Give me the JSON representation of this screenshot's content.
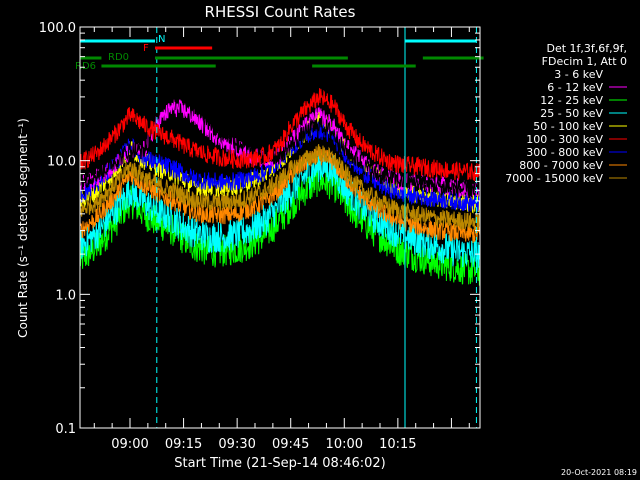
{
  "chart_data": {
    "type": "line",
    "title": "RHESSI Count Rates",
    "xlabel": "Start Time (21-Sep-14 08:46:02)",
    "ylabel": "Count Rate (s⁻¹ detector segment⁻¹)",
    "yscale": "log",
    "ylim": [
      0.1,
      100.0
    ],
    "xlim_minutes": [
      0,
      112
    ],
    "x_tick_labels": [
      "09:00",
      "09:15",
      "09:30",
      "09:45",
      "10:00",
      "10:15"
    ],
    "x_tick_minutes": [
      14,
      29,
      44,
      59,
      74,
      89
    ],
    "y_tick_labels": [
      "0.1",
      "1.0",
      "10.0",
      "100.0"
    ],
    "y_tick_values": [
      0.1,
      1.0,
      10.0,
      100.0
    ],
    "legend_header": [
      "Det 1f,3f,6f,9f,",
      "FDecim 1, Att 0"
    ],
    "legend_placement": "right",
    "grid": false,
    "series": [
      {
        "name": "3 - 6 keV",
        "color": "#000000",
        "x": [
          0,
          5,
          10,
          14,
          18,
          22,
          26,
          29,
          32,
          36,
          40,
          44,
          48,
          52,
          56,
          59,
          63,
          67,
          71,
          74,
          78,
          82,
          86,
          90,
          95,
          100,
          105,
          110
        ],
        "y": [
          7.0,
          8.0,
          10.0,
          12.0,
          12.0,
          25.0,
          32.0,
          30.0,
          26.0,
          20.0,
          16.0,
          14.0,
          12.0,
          10.5,
          11.0,
          13.0,
          16.0,
          19.0,
          16.0,
          12.0,
          10.0,
          8.0,
          7.5,
          7.0,
          6.8,
          6.5,
          6.2,
          6.0
        ]
      },
      {
        "name": "6 - 12 keV",
        "color": "#ff00ff",
        "x": [
          0,
          5,
          10,
          14,
          18,
          22,
          26,
          29,
          32,
          36,
          40,
          44,
          48,
          52,
          56,
          59,
          63,
          67,
          71,
          74,
          78,
          82,
          86,
          90,
          95,
          100,
          105,
          110
        ],
        "y": [
          6.5,
          7.5,
          9.5,
          11.5,
          12.0,
          20.0,
          25.0,
          24.0,
          21.0,
          17.0,
          14.0,
          12.5,
          11.0,
          10.0,
          11.0,
          14.0,
          18.0,
          22.0,
          18.0,
          13.0,
          10.5,
          8.5,
          7.5,
          7.0,
          6.8,
          6.6,
          6.3,
          6.0
        ]
      },
      {
        "name": "12 - 25 keV",
        "color": "#00ff00",
        "x": [
          0,
          5,
          10,
          14,
          18,
          22,
          26,
          29,
          32,
          36,
          40,
          44,
          48,
          52,
          56,
          59,
          63,
          67,
          71,
          74,
          78,
          82,
          86,
          90,
          95,
          100,
          105,
          110
        ],
        "y": [
          1.8,
          2.3,
          3.5,
          5.0,
          4.0,
          3.4,
          3.0,
          2.6,
          2.3,
          2.1,
          2.1,
          2.2,
          2.4,
          2.8,
          3.6,
          4.6,
          6.0,
          7.2,
          6.6,
          5.0,
          3.8,
          3.0,
          2.5,
          2.1,
          1.9,
          1.7,
          1.6,
          1.5
        ]
      },
      {
        "name": "25 - 50 keV",
        "color": "#00ffff",
        "x": [
          0,
          5,
          10,
          14,
          18,
          22,
          26,
          29,
          32,
          36,
          40,
          44,
          48,
          52,
          56,
          59,
          63,
          67,
          71,
          74,
          78,
          82,
          86,
          90,
          95,
          100,
          105,
          110
        ],
        "y": [
          2.3,
          2.9,
          4.3,
          6.0,
          4.9,
          4.1,
          3.7,
          3.2,
          2.9,
          2.7,
          2.7,
          2.8,
          3.1,
          3.6,
          4.6,
          5.9,
          7.7,
          9.2,
          8.4,
          6.4,
          4.8,
          3.8,
          3.2,
          2.8,
          2.5,
          2.3,
          2.1,
          2.0
        ]
      },
      {
        "name": "50 - 100 keV",
        "color": "#ffff00",
        "x": [
          0,
          5,
          10,
          14,
          18,
          22,
          26,
          29,
          32,
          36,
          40,
          44,
          48,
          52,
          56,
          59,
          63,
          67,
          71,
          74,
          78,
          82,
          86,
          90,
          95,
          100,
          105,
          110
        ],
        "y": [
          5.0,
          6.0,
          8.5,
          12.5,
          10.0,
          8.8,
          8.0,
          7.2,
          6.5,
          6.3,
          6.3,
          6.5,
          7.0,
          8.0,
          9.8,
          12.3,
          16.0,
          21.0,
          17.0,
          12.5,
          9.6,
          8.0,
          6.8,
          6.0,
          5.6,
          5.2,
          5.0,
          4.8
        ]
      },
      {
        "name": "100 - 300 keV",
        "color": "#ff0000",
        "x": [
          0,
          5,
          10,
          14,
          18,
          22,
          26,
          29,
          32,
          36,
          40,
          44,
          48,
          52,
          56,
          59,
          63,
          67,
          71,
          74,
          78,
          82,
          86,
          90,
          95,
          100,
          105,
          110
        ],
        "y": [
          9.5,
          11.5,
          16.0,
          22.0,
          18.5,
          16.0,
          14.5,
          13.0,
          12.0,
          11.0,
          10.5,
          10.2,
          10.3,
          10.8,
          13.0,
          18.0,
          24.0,
          30.0,
          26.0,
          19.0,
          14.0,
          11.5,
          10.0,
          9.3,
          9.0,
          8.7,
          8.4,
          8.2
        ]
      },
      {
        "name": "300 - 800 keV",
        "color": "#0000ff",
        "x": [
          0,
          5,
          10,
          14,
          18,
          22,
          26,
          29,
          32,
          36,
          40,
          44,
          48,
          52,
          56,
          59,
          63,
          67,
          71,
          74,
          78,
          82,
          86,
          90,
          95,
          100,
          105,
          110
        ],
        "y": [
          5.5,
          6.8,
          9.5,
          13.0,
          10.5,
          9.5,
          8.8,
          8.0,
          7.3,
          7.0,
          6.9,
          7.0,
          7.5,
          8.3,
          10.2,
          12.5,
          15.2,
          17.0,
          15.0,
          11.5,
          8.8,
          7.2,
          6.2,
          5.7,
          5.4,
          5.2,
          5.0,
          4.8
        ]
      },
      {
        "name": "800 - 7000 keV",
        "color": "#ff8800",
        "x": [
          0,
          5,
          10,
          14,
          18,
          22,
          26,
          29,
          32,
          36,
          40,
          44,
          48,
          52,
          56,
          59,
          63,
          67,
          71,
          74,
          78,
          82,
          86,
          90,
          95,
          100,
          105,
          110
        ],
        "y": [
          3.0,
          3.8,
          5.5,
          8.0,
          6.5,
          5.6,
          5.0,
          4.5,
          4.1,
          3.9,
          3.9,
          4.0,
          4.4,
          5.0,
          6.2,
          7.7,
          9.7,
          11.0,
          9.8,
          7.6,
          5.7,
          4.6,
          3.9,
          3.5,
          3.2,
          3.0,
          2.9,
          2.8
        ]
      },
      {
        "name": "7000 - 15000 keV",
        "color": "#bb8800",
        "x": [
          0,
          5,
          10,
          14,
          18,
          22,
          26,
          29,
          32,
          36,
          40,
          44,
          48,
          52,
          56,
          59,
          63,
          67,
          71,
          74,
          78,
          82,
          86,
          90,
          95,
          100,
          105,
          110
        ],
        "y": [
          4.2,
          5.0,
          6.8,
          9.0,
          7.5,
          6.5,
          6.0,
          5.5,
          5.1,
          4.9,
          4.9,
          5.0,
          5.4,
          6.0,
          7.2,
          8.6,
          10.2,
          11.5,
          10.3,
          8.2,
          6.4,
          5.3,
          4.6,
          4.2,
          3.9,
          3.7,
          3.6,
          3.5
        ]
      }
    ],
    "vertical_markers": [
      {
        "x": 0,
        "style": "solid",
        "color": "#00ffff"
      },
      {
        "x": 21.5,
        "style": "dashed",
        "color": "#00ffff"
      },
      {
        "x": 91,
        "style": "solid",
        "color": "#00ffff"
      },
      {
        "x": 111,
        "style": "dashed",
        "color": "#00ffff"
      }
    ],
    "flag_bars": [
      {
        "label": "N",
        "color": "#00ffff",
        "level": 1,
        "segments": [
          [
            0,
            21
          ],
          [
            91,
            111
          ]
        ]
      },
      {
        "label": "F",
        "color": "#ff0000",
        "level": 2,
        "segments": [
          [
            21,
            37
          ]
        ]
      },
      {
        "label": "RD0",
        "color": "#008800",
        "level": 3,
        "segments": [
          [
            0,
            6
          ],
          [
            21,
            75
          ],
          [
            96,
            113
          ]
        ]
      },
      {
        "label": "RD6",
        "color": "#008800",
        "level": 4,
        "segments": [
          [
            6,
            38
          ],
          [
            65,
            94
          ]
        ]
      }
    ],
    "footer_date": "20-Oct-2021 08:19"
  }
}
